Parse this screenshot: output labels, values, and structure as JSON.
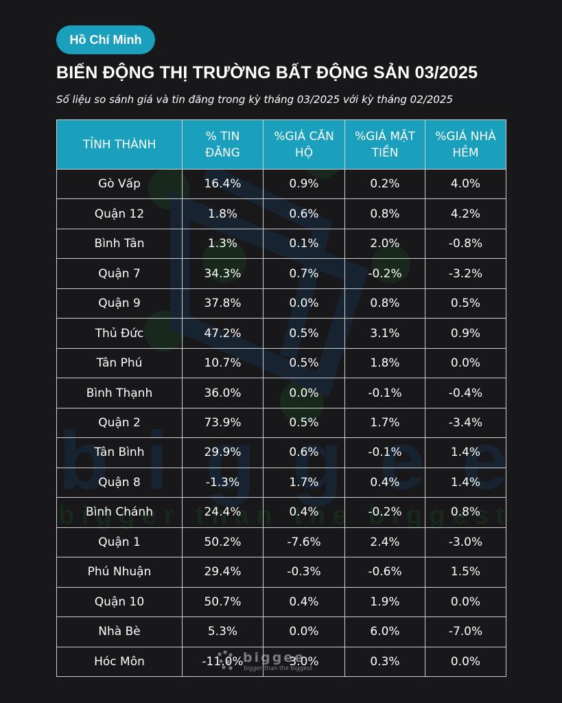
{
  "badge": "Hồ Chí Minh",
  "title": "BIẾN ĐỘNG THỊ TRƯỜNG BẤT ĐỘNG SẢN 03/2025",
  "subtitle": "Số liệu so sánh giá và tin đăng trong kỳ tháng 03/2025 với kỳ tháng 02/2025",
  "table": {
    "headers": [
      "TỈNH THÀNH",
      "% TIN ĐĂNG",
      "%GIÁ CĂN HỘ",
      "%GIÁ MẶT TIỀN",
      "%GIÁ NHÀ HẺM"
    ],
    "rows": [
      [
        "Gò Vấp",
        "16.4%",
        "0.9%",
        "0.2%",
        "4.0%"
      ],
      [
        "Quận 12",
        "1.8%",
        "0.6%",
        "0.8%",
        "4.2%"
      ],
      [
        "Bình Tân",
        "1.3%",
        "0.1%",
        "2.0%",
        "-0.8%"
      ],
      [
        "Quận 7",
        "34.3%",
        "0.7%",
        "-0.2%",
        "-3.2%"
      ],
      [
        "Quận 9",
        "37.8%",
        "0.0%",
        "0.8%",
        "0.5%"
      ],
      [
        "Thủ Đức",
        "47.2%",
        "0.5%",
        "3.1%",
        "0.9%"
      ],
      [
        "Tân Phú",
        "10.7%",
        "0.5%",
        "1.8%",
        "0.0%"
      ],
      [
        "Bình Thạnh",
        "36.0%",
        "0.0%",
        "-0.1%",
        "-0.4%"
      ],
      [
        "Quận 2",
        "73.9%",
        "0.5%",
        "1.7%",
        "-3.4%"
      ],
      [
        "Tân Bình",
        "29.9%",
        "0.6%",
        "-0.1%",
        "1.4%"
      ],
      [
        "Quận 8",
        "-1.3%",
        "1.7%",
        "0.4%",
        "1.4%"
      ],
      [
        "Bình Chánh",
        "24.4%",
        "0.4%",
        "-0.2%",
        "0.8%"
      ],
      [
        "Quận 1",
        "50.2%",
        "-7.6%",
        "2.4%",
        "-3.0%"
      ],
      [
        "Phú Nhuận",
        "29.4%",
        "-0.3%",
        "-0.6%",
        "1.5%"
      ],
      [
        "Quận 10",
        "50.7%",
        "0.4%",
        "1.9%",
        "0.0%"
      ],
      [
        "Nhà Bè",
        "5.3%",
        "0.0%",
        "6.0%",
        "-7.0%"
      ],
      [
        "Hóc Môn",
        "-11.0%",
        "3.0%",
        "0.3%",
        "0.0%"
      ]
    ]
  },
  "watermark": {
    "wordmark": "biggee",
    "tagline": "bigger than the biggest"
  },
  "colors": {
    "background": "#18181a",
    "accent": "#1aa0bd",
    "grid": "#d0d0d0"
  }
}
